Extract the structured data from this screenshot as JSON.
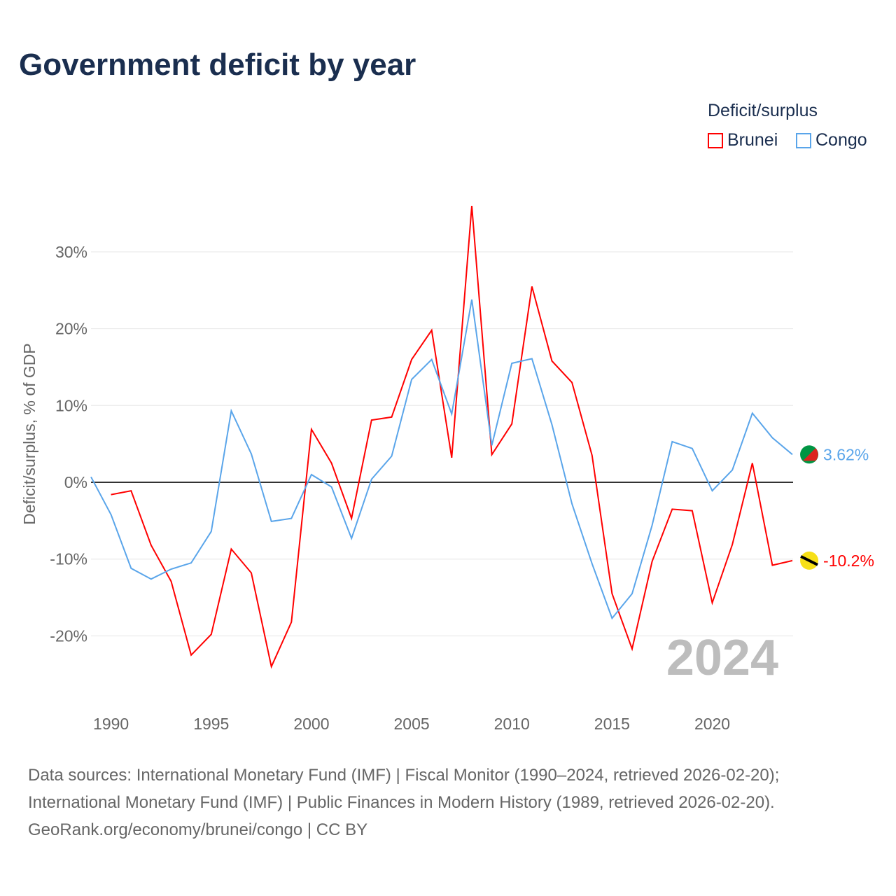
{
  "title": "Government deficit by year",
  "legend": {
    "title": "Deficit/surplus",
    "items": [
      {
        "name": "Brunei",
        "color": "#ff0000"
      },
      {
        "name": "Congo",
        "color": "#5aa5ea"
      }
    ]
  },
  "year_watermark": "2024",
  "sources": [
    "Data sources: International Monetary Fund (IMF) | Fiscal Monitor (1990–2024, retrieved 2026-02-20);",
    "International Monetary Fund (IMF) | Public Finances in Modern History (1989, retrieved 2026-02-20).",
    "GeoRank.org/economy/brunei/congo | CC BY"
  ],
  "chart_data": {
    "type": "line",
    "title": "Government deficit by year",
    "xlabel": "",
    "ylabel": "Deficit/surplus, % of GDP",
    "xlim": [
      1989,
      2024
    ],
    "ylim": [
      -29,
      36
    ],
    "x_ticks": [
      1990,
      1995,
      2000,
      2005,
      2010,
      2015,
      2020
    ],
    "y_ticks": [
      -20,
      -10,
      0,
      10,
      20,
      30
    ],
    "y_tick_labels": [
      "-20%",
      "-10%",
      "0%",
      "10%",
      "20%",
      "30%"
    ],
    "grid": true,
    "legend_position": "top-right",
    "series": [
      {
        "name": "Brunei",
        "color": "#ff0000",
        "end_label": "-10.2%",
        "x": [
          1990,
          1991,
          1992,
          1993,
          1994,
          1995,
          1996,
          1997,
          1998,
          1999,
          2000,
          2001,
          2002,
          2003,
          2004,
          2005,
          2006,
          2007,
          2008,
          2009,
          2010,
          2011,
          2012,
          2013,
          2014,
          2015,
          2016,
          2017,
          2018,
          2019,
          2020,
          2021,
          2022,
          2023,
          2024
        ],
        "values": [
          -1.6,
          -1.1,
          -8.2,
          -12.9,
          -22.5,
          -19.8,
          -8.7,
          -11.8,
          -24.0,
          -18.2,
          6.9,
          2.5,
          -4.7,
          8.1,
          8.5,
          16.0,
          19.8,
          3.2,
          36.0,
          3.6,
          7.6,
          25.5,
          15.8,
          13.0,
          3.5,
          -14.5,
          -21.7,
          -10.3,
          -3.5,
          -3.7,
          -15.7,
          -8.1,
          2.5,
          -10.8,
          -10.2
        ]
      },
      {
        "name": "Congo",
        "color": "#5aa5ea",
        "end_label": "3.62%",
        "x": [
          1989,
          1990,
          1991,
          1992,
          1993,
          1994,
          1995,
          1996,
          1997,
          1998,
          1999,
          2000,
          2001,
          2002,
          2003,
          2004,
          2005,
          2006,
          2007,
          2008,
          2009,
          2010,
          2011,
          2012,
          2013,
          2014,
          2015,
          2016,
          2017,
          2018,
          2019,
          2020,
          2021,
          2022,
          2023,
          2024
        ],
        "values": [
          0.7,
          -4.2,
          -11.2,
          -12.6,
          -11.3,
          -10.5,
          -6.4,
          9.3,
          3.7,
          -5.1,
          -4.7,
          1.0,
          -0.6,
          -7.3,
          0.4,
          3.4,
          13.4,
          16.0,
          8.9,
          23.8,
          4.8,
          15.5,
          16.1,
          7.5,
          -2.8,
          -10.6,
          -17.7,
          -14.5,
          -5.6,
          5.3,
          4.4,
          -1.1,
          1.6,
          9.0,
          5.8,
          3.62
        ]
      }
    ]
  }
}
